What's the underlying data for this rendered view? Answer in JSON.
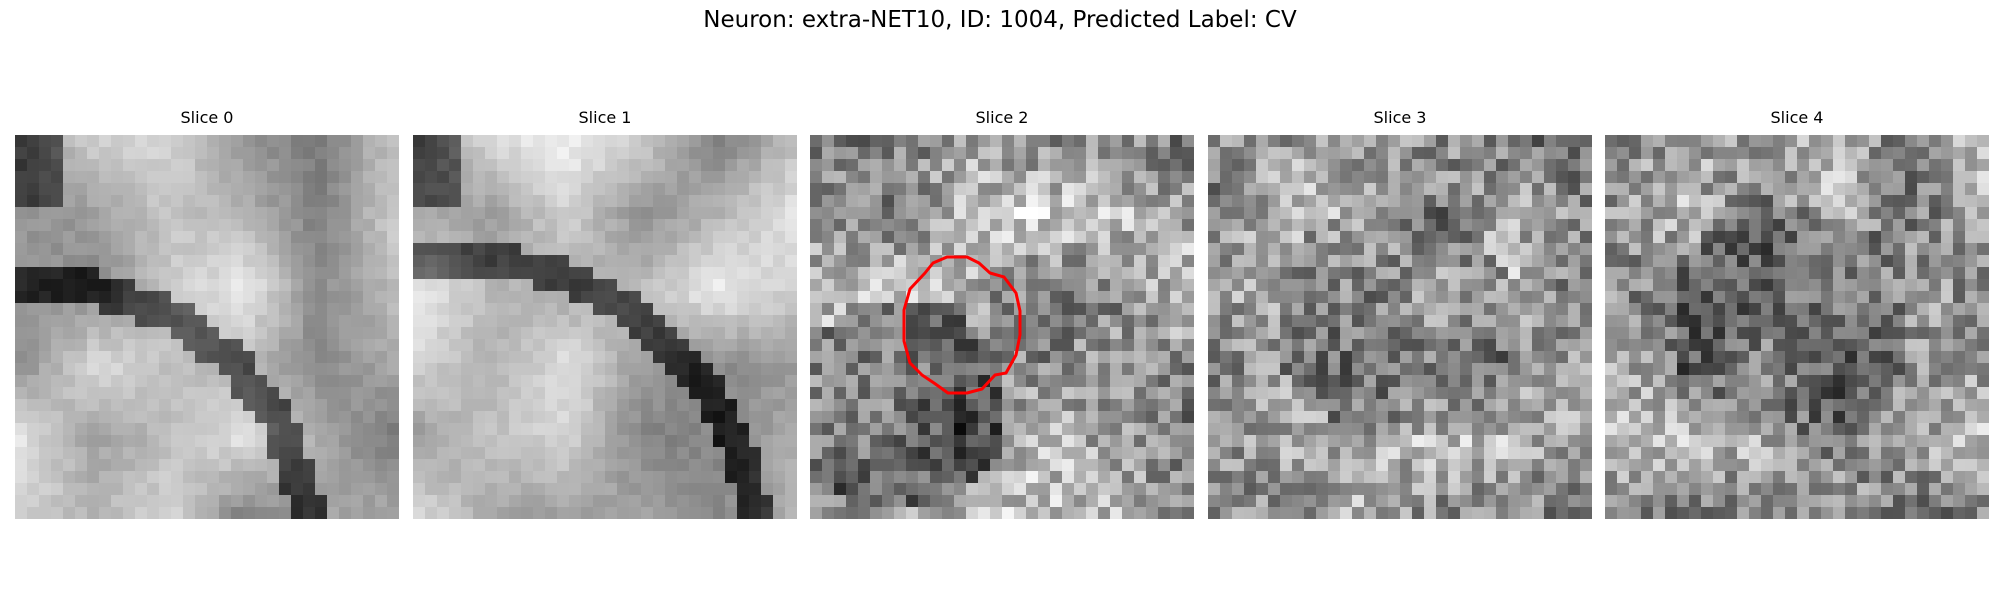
{
  "figure": {
    "title": "Neuron: extra-NET10, ID: 1004, Predicted Label: CV"
  },
  "slices": [
    {
      "title": "Slice 0",
      "style": "smooth",
      "seed": 11
    },
    {
      "title": "Slice 1",
      "style": "smooth",
      "seed": 23
    },
    {
      "title": "Slice 2",
      "style": "noisy",
      "seed": 37,
      "has_roi": true
    },
    {
      "title": "Slice 3",
      "style": "noisy",
      "seed": 41
    },
    {
      "title": "Slice 4",
      "style": "noisy",
      "seed": 53
    }
  ],
  "roi": {
    "color": "#ff0000"
  },
  "colormap": "gray"
}
